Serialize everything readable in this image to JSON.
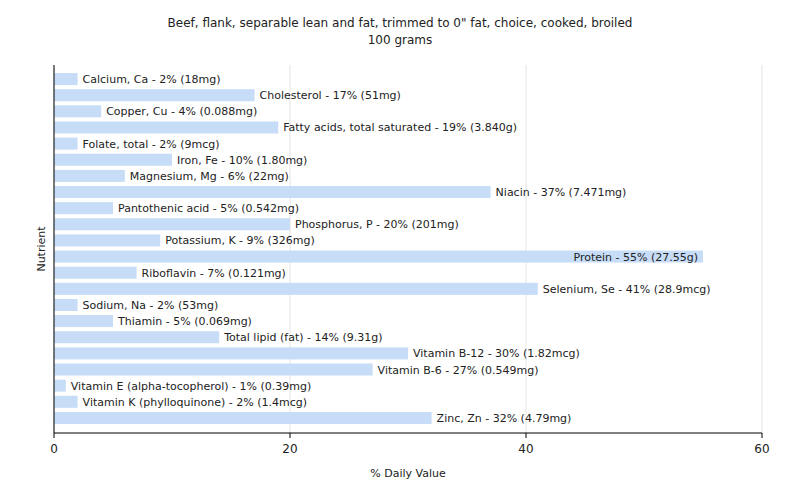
{
  "chart_data": {
    "type": "bar",
    "orientation": "horizontal",
    "title": "Beef, flank, separable lean and fat, trimmed to 0\" fat, choice, cooked, broiled",
    "subtitle": "100 grams",
    "x_label": "% Daily Value",
    "y_label": "Nutrient",
    "categories": [
      "Calcium, Ca - 2% (18mg)",
      "Cholesterol - 17% (51mg)",
      "Copper, Cu - 4% (0.088mg)",
      "Fatty acids, total saturated - 19% (3.840g)",
      "Folate, total - 2% (9mcg)",
      "Iron, Fe - 10% (1.80mg)",
      "Magnesium, Mg - 6% (22mg)",
      "Niacin - 37% (7.471mg)",
      "Pantothenic acid - 5% (0.542mg)",
      "Phosphorus, P - 20% (201mg)",
      "Potassium, K - 9% (326mg)",
      "Protein - 55% (27.55g)",
      "Riboflavin - 7% (0.121mg)",
      "Selenium, Se - 41% (28.9mcg)",
      "Sodium, Na - 2% (53mg)",
      "Thiamin - 5% (0.069mg)",
      "Total lipid (fat) - 14% (9.31g)",
      "Vitamin B-12 - 30% (1.82mcg)",
      "Vitamin B-6 - 27% (0.549mg)",
      "Vitamin E (alpha-tocopherol) - 1% (0.39mg)",
      "Vitamin K (phylloquinone) - 2% (1.4mcg)",
      "Zinc, Zn - 32% (4.79mg)"
    ],
    "values": [
      2,
      17,
      4,
      19,
      2,
      10,
      6,
      37,
      5,
      20,
      9,
      55,
      7,
      41,
      2,
      5,
      14,
      30,
      27,
      1,
      2,
      32
    ],
    "color": "#c6dcf7",
    "xlim": [
      0,
      60
    ],
    "xticks": [
      0,
      20,
      40,
      60
    ],
    "grid": true
  }
}
